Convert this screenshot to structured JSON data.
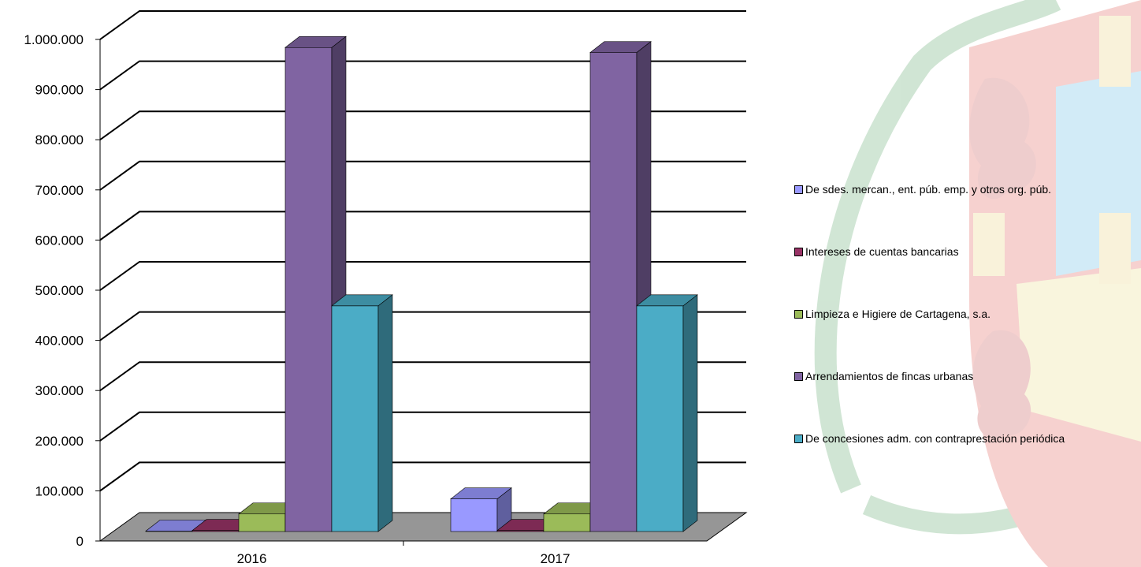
{
  "chart_data": {
    "type": "bar",
    "categories": [
      "2016",
      "2017"
    ],
    "series": [
      {
        "name": "De sdes. mercan., ent. púb. emp. y otros org. púb.",
        "values": [
          0,
          65000
        ],
        "color": "#9999ff"
      },
      {
        "name": "Intereses de cuentas bancarias",
        "values": [
          2000,
          2000
        ],
        "color": "#993366"
      },
      {
        "name": "Limpieza e Higiere de Cartagena, s.a.",
        "values": [
          35000,
          35000
        ],
        "color": "#9bbb59"
      },
      {
        "name": "Arrendamientos de fincas urbanas",
        "values": [
          965000,
          955000
        ],
        "color": "#8064a2"
      },
      {
        "name": "De concesiones adm. con contraprestación periódica",
        "values": [
          450000,
          450000
        ],
        "color": "#4bacc6"
      }
    ],
    "ytick_labels": [
      "0",
      "100.000",
      "200.000",
      "300.000",
      "400.000",
      "500.000",
      "600.000",
      "700.000",
      "800.000",
      "900.000",
      "1.000.000"
    ],
    "ylim": [
      0,
      1000000
    ],
    "grid": true,
    "legend_position": "right",
    "style": "3d-clustered-column",
    "background": "watermark coat-of-arms"
  }
}
